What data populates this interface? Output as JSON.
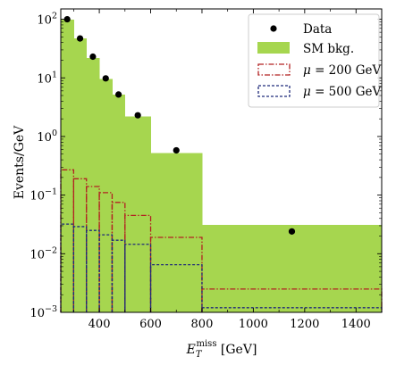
{
  "chart_data": {
    "type": "step-histogram",
    "x_axis": {
      "label_main": "E",
      "label_sub": "T",
      "label_sup": "miss",
      "label_unit": " [GeV]",
      "range": [
        250,
        1500
      ],
      "ticks": [
        400,
        600,
        800,
        1000,
        1200,
        1400
      ],
      "tick_labels": [
        "400",
        "600",
        "800",
        "1000",
        "1200",
        "1400"
      ]
    },
    "y_axis": {
      "label": "Events/GeV",
      "scale": "log",
      "range": [
        0.001,
        150
      ],
      "ticks": [
        0.001,
        0.01,
        0.1,
        1,
        10,
        100
      ],
      "tick_labels": [
        {
          "base": "10",
          "exp": "−3"
        },
        {
          "base": "10",
          "exp": "−2"
        },
        {
          "base": "10",
          "exp": "−1"
        },
        {
          "base": "10",
          "exp": "0"
        },
        {
          "base": "10",
          "exp": "1"
        },
        {
          "base": "10",
          "exp": "2"
        }
      ]
    },
    "bin_edges": [
      250,
      300,
      350,
      400,
      450,
      500,
      600,
      800,
      1500
    ],
    "series": [
      {
        "name": "SM bkg.",
        "style": "filled-step",
        "color": "#a6d64f",
        "values": [
          98,
          47,
          22,
          9.5,
          5.2,
          2.2,
          0.52,
          0.031
        ]
      },
      {
        "name": "μ = 200 GeV",
        "style": "dashdot-step",
        "color": "#b22222",
        "values": [
          0.27,
          0.19,
          0.14,
          0.11,
          0.075,
          0.045,
          0.019,
          0.0025
        ]
      },
      {
        "name": "μ = 500 GeV",
        "style": "dashed-step",
        "color": "#1f2a7a",
        "values": [
          0.032,
          0.029,
          0.025,
          0.021,
          0.017,
          0.0145,
          0.0065,
          0.0012
        ]
      },
      {
        "name": "Data",
        "style": "points",
        "color": "#000000",
        "x": [
          275,
          325,
          375,
          425,
          475,
          550,
          700,
          1150
        ],
        "values": [
          100,
          47,
          23,
          9.8,
          5.2,
          2.3,
          0.58,
          0.024
        ]
      }
    ],
    "legend": {
      "placement": "top-right",
      "entries": [
        {
          "label": "Data",
          "kind": "point",
          "color": "#000000"
        },
        {
          "label": "SM bkg.",
          "kind": "patch",
          "color": "#a6d64f"
        },
        {
          "label": "μ = 200 GeV",
          "kind": "dashdot-box",
          "color": "#b22222",
          "mu": "μ",
          "rest": " = 200 GeV"
        },
        {
          "label": "μ = 500 GeV",
          "kind": "dashed-box",
          "color": "#1f2a7a",
          "mu": "μ",
          "rest": " = 500 GeV"
        }
      ]
    }
  }
}
